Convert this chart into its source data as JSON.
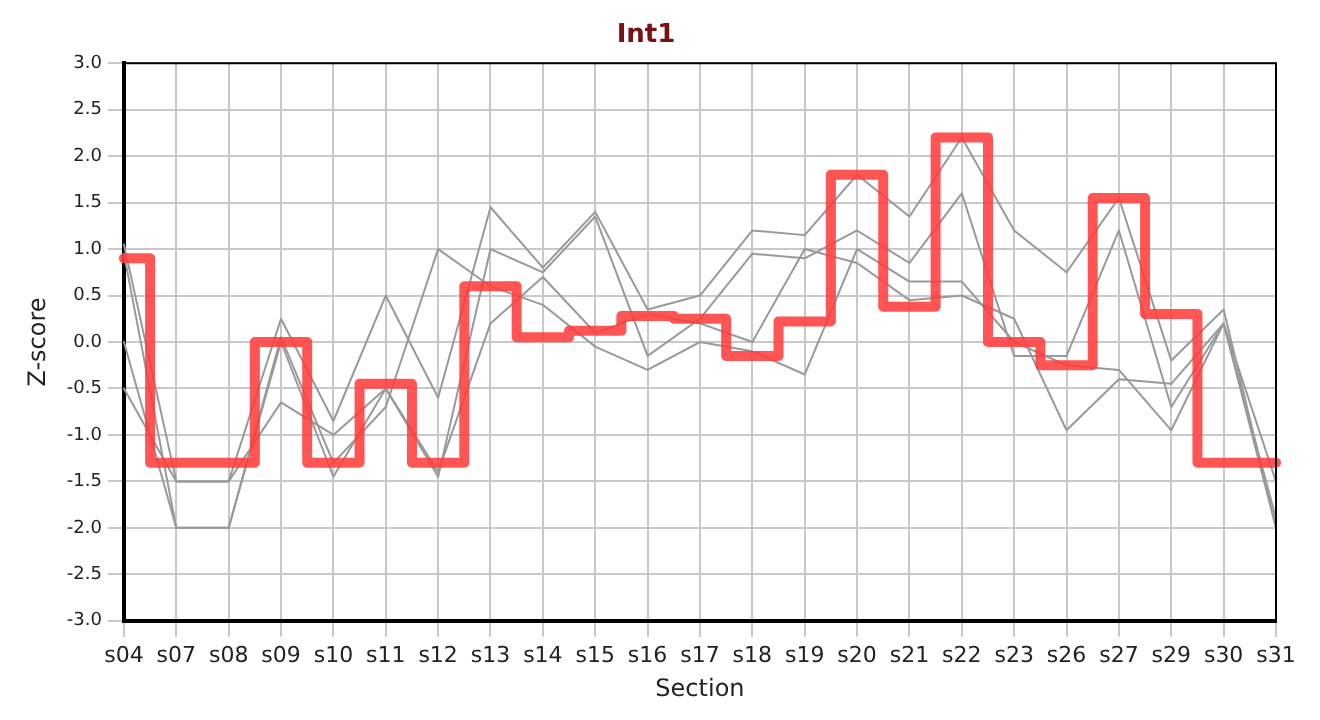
{
  "chart_data": {
    "type": "line",
    "title": "Int1",
    "xlabel": "Section",
    "ylabel": "Z-score",
    "categories": [
      "s04",
      "s07",
      "s08",
      "s09",
      "s10",
      "s11",
      "s12",
      "s13",
      "s14",
      "s15",
      "s16",
      "s17",
      "s18",
      "s19",
      "s20",
      "s21",
      "s22",
      "s23",
      "s26",
      "s27",
      "s29",
      "s30",
      "s31"
    ],
    "series": [
      {
        "type": "line",
        "color": "#999999",
        "values": [
          1.05,
          -1.5,
          -1.5,
          0.25,
          -0.85,
          0.5,
          -0.6,
          1.45,
          0.8,
          1.4,
          0.35,
          0.5,
          1.2,
          1.15,
          1.8,
          1.35,
          2.2,
          1.2,
          0.75,
          1.55,
          -0.2,
          0.35,
          -2.0
        ]
      },
      {
        "type": "line",
        "color": "#999999",
        "values": [
          0.95,
          -2.0,
          -2.0,
          0.0,
          -1.45,
          -0.5,
          -1.45,
          1.0,
          0.75,
          1.35,
          -0.15,
          0.25,
          0.95,
          0.9,
          1.2,
          0.85,
          1.6,
          -0.15,
          -0.15,
          1.2,
          -0.7,
          0.2,
          -1.5
        ]
      },
      {
        "type": "line",
        "color": "#999999",
        "values": [
          0.0,
          -2.0,
          -2.0,
          0.05,
          -1.3,
          -0.7,
          1.0,
          0.6,
          0.4,
          -0.05,
          -0.3,
          0.0,
          -0.1,
          -0.35,
          1.0,
          0.65,
          0.65,
          0.0,
          -0.25,
          -0.3,
          -0.95,
          0.2,
          -2.0
        ]
      },
      {
        "type": "line",
        "color": "#999999",
        "values": [
          -0.5,
          -1.5,
          -1.5,
          -0.65,
          -1.0,
          -0.5,
          -1.4,
          0.2,
          0.7,
          0.1,
          0.3,
          0.2,
          0.0,
          1.0,
          0.85,
          0.45,
          0.5,
          0.25,
          -0.95,
          -0.4,
          -0.45,
          0.2,
          -1.9
        ]
      },
      {
        "type": "step",
        "color": "#ff3b3b",
        "values": [
          0.9,
          -1.3,
          -1.3,
          0.0,
          -1.3,
          -0.45,
          -1.3,
          0.6,
          0.05,
          0.12,
          0.28,
          0.25,
          -0.15,
          0.22,
          1.8,
          0.38,
          2.2,
          0.0,
          -0.25,
          1.55,
          0.3,
          -1.3,
          -1.3
        ]
      }
    ],
    "ylim": [
      -3,
      3
    ],
    "yticks": [
      {
        "value": -3,
        "label": "-3.0"
      },
      {
        "value": -2.5,
        "label": "-2.5"
      },
      {
        "value": -2,
        "label": "-2.0"
      },
      {
        "value": -1.5,
        "label": "-1.5"
      },
      {
        "value": -1,
        "label": "-1.0"
      },
      {
        "value": -0.5,
        "label": "-0.5"
      },
      {
        "value": 0,
        "label": "0.0"
      },
      {
        "value": 0.5,
        "label": "0.5"
      },
      {
        "value": 1,
        "label": "1.0"
      },
      {
        "value": 1.5,
        "label": "1.5"
      },
      {
        "value": 2,
        "label": "2.0"
      },
      {
        "value": 2.5,
        "label": "2.5"
      },
      {
        "value": 3,
        "label": "3.0"
      }
    ],
    "grid": true,
    "legend": false,
    "marker": "none"
  }
}
